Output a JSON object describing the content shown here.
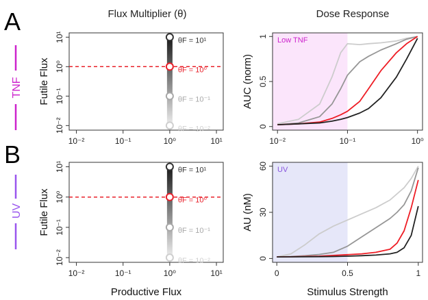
{
  "figure": {
    "col_titles": [
      "Flux Multiplier (θ)",
      "Dose Response"
    ],
    "panels": [
      {
        "letter": "A",
        "side_label": "TNF",
        "side_color": "#cc22cc"
      },
      {
        "letter": "B",
        "side_label": "UV",
        "side_color": "#9955ee"
      }
    ],
    "bottom_xlabels": [
      "Productive Flux",
      "Stimulus Strength"
    ]
  },
  "chart_data": [
    {
      "type": "scatter",
      "panel": "A-left",
      "xscale": "log",
      "yscale": "log",
      "xlim": [
        0.007,
        14
      ],
      "ylim": [
        0.007,
        14
      ],
      "xticks": [
        0.01,
        0.1,
        1,
        10
      ],
      "yticks": [
        0.01,
        0.1,
        1,
        10
      ],
      "xtick_labels": [
        "10⁻²",
        "10⁻¹",
        "10⁰",
        "10¹"
      ],
      "ytick_labels": [
        "10⁻²",
        "10⁻¹",
        "10⁰",
        "10¹"
      ],
      "xlabel": "",
      "ylabel": "Futile Flux",
      "reference_line": {
        "y": 1,
        "color": "#e8202a",
        "style": "dashed"
      },
      "gradient_column": {
        "x": 1,
        "y_from": 0.01,
        "y_to": 10
      },
      "points": [
        {
          "x": 1,
          "y": 10,
          "label": "θF = 10¹",
          "color": "#333333"
        },
        {
          "x": 1,
          "y": 1,
          "label": "θF = 10⁰",
          "color": "#e8202a"
        },
        {
          "x": 1,
          "y": 0.1,
          "label": "θF = 10⁻¹",
          "color": "#a8a8a8"
        },
        {
          "x": 1,
          "y": 0.01,
          "label": "θF = 10⁻²",
          "color": "#cfcfcf"
        }
      ]
    },
    {
      "type": "line",
      "panel": "A-right",
      "xscale": "log",
      "xlim": [
        0.0085,
        1.18
      ],
      "ylim": [
        -0.04,
        1.04
      ],
      "xticks": [
        0.01,
        0.1,
        1
      ],
      "xtick_labels": [
        "10⁻²",
        "10⁻¹",
        "10⁰"
      ],
      "yticks": [
        0,
        0.5,
        1
      ],
      "ytick_labels": [
        "0",
        "0.5",
        "1"
      ],
      "xlabel": "",
      "ylabel": "AUC (norm)",
      "shade": {
        "from": 0.0085,
        "to": 0.1,
        "color": "#fbe5fb",
        "label": "Low TNF",
        "label_color": "#cc22cc"
      },
      "x": [
        0.01,
        0.02,
        0.04,
        0.06,
        0.08,
        0.1,
        0.15,
        0.2,
        0.3,
        0.5,
        0.7,
        1.0
      ],
      "series": [
        {
          "color": "#cccccc",
          "values": [
            0.03,
            0.08,
            0.25,
            0.55,
            0.82,
            0.92,
            0.91,
            0.92,
            0.93,
            0.95,
            0.98,
            1.0
          ]
        },
        {
          "color": "#969696",
          "values": [
            0.02,
            0.04,
            0.11,
            0.25,
            0.42,
            0.57,
            0.72,
            0.78,
            0.85,
            0.92,
            0.97,
            1.0
          ]
        },
        {
          "color": "#ee1c24",
          "values": [
            0.02,
            0.03,
            0.05,
            0.09,
            0.13,
            0.17,
            0.28,
            0.42,
            0.62,
            0.82,
            0.92,
            1.0
          ]
        },
        {
          "color": "#222222",
          "values": [
            0.02,
            0.03,
            0.04,
            0.06,
            0.08,
            0.1,
            0.15,
            0.2,
            0.32,
            0.55,
            0.75,
            0.98
          ]
        }
      ]
    },
    {
      "type": "scatter",
      "panel": "B-left",
      "xscale": "log",
      "yscale": "log",
      "xlim": [
        0.007,
        14
      ],
      "ylim": [
        0.007,
        14
      ],
      "xticks": [
        0.01,
        0.1,
        1,
        10
      ],
      "yticks": [
        0.01,
        0.1,
        1,
        10
      ],
      "xtick_labels": [
        "10⁻²",
        "10⁻¹",
        "10⁰",
        "10¹"
      ],
      "ytick_labels": [
        "10⁻²",
        "10⁻¹",
        "10⁰",
        "10¹"
      ],
      "xlabel": "Productive Flux",
      "ylabel": "Futile Flux",
      "reference_line": {
        "y": 1,
        "color": "#e8202a",
        "style": "dashed"
      },
      "gradient_column": {
        "x": 1,
        "y_from": 0.01,
        "y_to": 10
      },
      "points": [
        {
          "x": 1,
          "y": 10,
          "label": "θF = 10¹",
          "color": "#333333"
        },
        {
          "x": 1,
          "y": 1,
          "label": "θF = 10⁰",
          "color": "#e8202a"
        },
        {
          "x": 1,
          "y": 0.1,
          "label": "θF = 10⁻¹",
          "color": "#a8a8a8"
        },
        {
          "x": 1,
          "y": 0.01,
          "label": "θF = 10⁻²",
          "color": "#cfcfcf"
        }
      ]
    },
    {
      "type": "line",
      "panel": "B-right",
      "xscale": "linear",
      "xlim": [
        -0.03,
        1.03
      ],
      "ylim": [
        -2.5,
        62.5
      ],
      "xticks": [
        0,
        0.5,
        1
      ],
      "xtick_labels": [
        "0",
        "0.5",
        "1"
      ],
      "yticks": [
        0,
        30,
        60
      ],
      "ytick_labels": [
        "0",
        "30",
        "60"
      ],
      "xlabel": "Stimulus Strength",
      "ylabel": "AU (nM)",
      "shade": {
        "from": -0.03,
        "to": 0.5,
        "color": "#e6e7f9",
        "label": "UV",
        "label_color": "#8855dd"
      },
      "x": [
        0,
        0.1,
        0.2,
        0.3,
        0.4,
        0.5,
        0.6,
        0.7,
        0.8,
        0.85,
        0.9,
        0.95,
        1.0
      ],
      "series": [
        {
          "color": "#cccccc",
          "values": [
            1,
            3,
            9,
            16,
            21,
            25,
            29,
            33,
            38,
            42,
            46,
            52,
            60
          ]
        },
        {
          "color": "#969696",
          "values": [
            1,
            1.3,
            1.8,
            2.6,
            4,
            8,
            14,
            20,
            26,
            30,
            35,
            44,
            59
          ]
        },
        {
          "color": "#ee1c24",
          "values": [
            1,
            1.1,
            1.3,
            1.5,
            2,
            2.5,
            3,
            4,
            6,
            10,
            18,
            33,
            51
          ]
        },
        {
          "color": "#222222",
          "values": [
            1,
            1.05,
            1.1,
            1.2,
            1.3,
            1.5,
            1.8,
            2.2,
            3,
            4,
            7,
            15,
            34
          ]
        }
      ]
    }
  ]
}
